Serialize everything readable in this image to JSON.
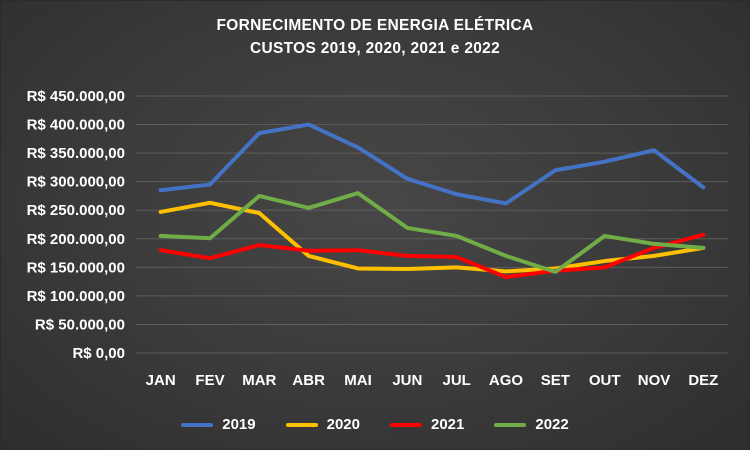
{
  "chart_data": {
    "type": "line",
    "title": "FORNECIMENTO DE ENERGIA ELÉTRICA",
    "subtitle": "CUSTOS 2019, 2020, 2021 e 2022",
    "xlabel": "",
    "ylabel": "",
    "ylim": [
      0,
      450000
    ],
    "grid": true,
    "legend_position": "bottom",
    "currency_prefix": "R$",
    "categories": [
      "JAN",
      "FEV",
      "MAR",
      "ABR",
      "MAI",
      "JUN",
      "JUL",
      "AGO",
      "SET",
      "OUT",
      "NOV",
      "DEZ"
    ],
    "y_axis": {
      "min": 0,
      "max": 450000,
      "step": 50000,
      "tick_labels": [
        "R$ 0,00",
        "R$ 50.000,00",
        "R$ 100.000,00",
        "R$ 150.000,00",
        "R$ 200.000,00",
        "R$ 250.000,00",
        "R$ 300.000,00",
        "R$ 350.000,00",
        "R$ 400.000,00",
        "R$ 450.000,00"
      ]
    },
    "series": [
      {
        "name": "2019",
        "color": "#4472C4",
        "values": [
          285000,
          295000,
          385000,
          400000,
          360000,
          305000,
          278000,
          262000,
          320000,
          335000,
          355000,
          290000
        ]
      },
      {
        "name": "2020",
        "color": "#FFC000",
        "values": [
          247000,
          263000,
          245000,
          170000,
          148000,
          147000,
          150000,
          143000,
          148000,
          161000,
          170000,
          184000
        ]
      },
      {
        "name": "2021",
        "color": "#FF0000",
        "values": [
          180000,
          166000,
          189000,
          179000,
          180000,
          170000,
          168000,
          133000,
          144000,
          150000,
          184000,
          207000
        ]
      },
      {
        "name": "2022",
        "color": "#70AD47",
        "values": [
          205000,
          201000,
          275000,
          254000,
          280000,
          219000,
          205000,
          170000,
          142000,
          205000,
          191000,
          184000
        ]
      }
    ]
  },
  "colors": {
    "background": "#3a3a3a",
    "gridline": "#5c5c5c",
    "text": "#ffffff"
  }
}
